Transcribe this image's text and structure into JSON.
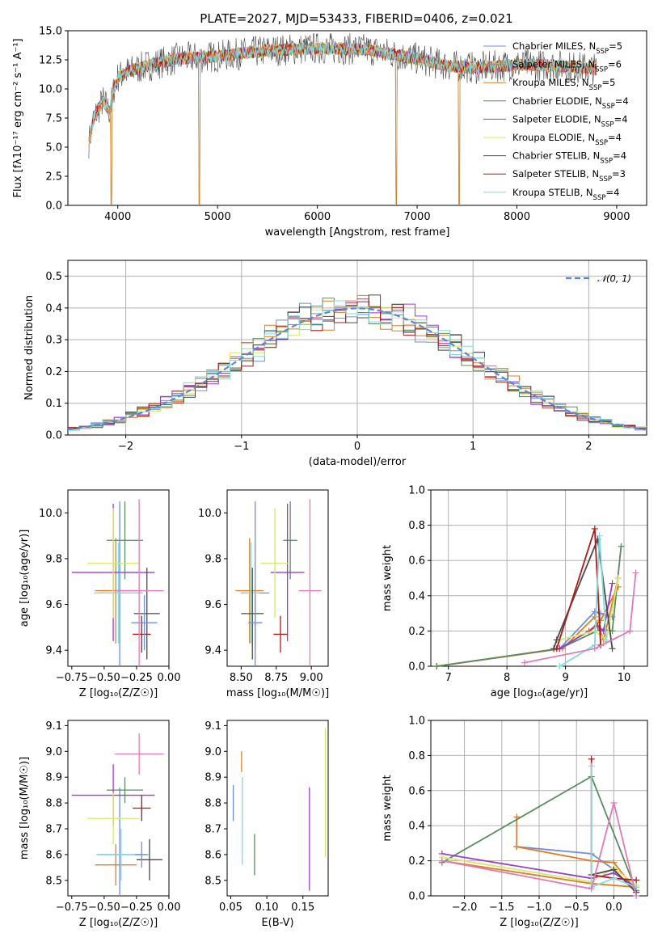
{
  "figure_title": "PLATE=2027, MJD=53433, FIBERID=0406, z=0.021",
  "series_colors": [
    "#6f8fdc",
    "#e07b1e",
    "#d9802a",
    "#5b8c62",
    "#9b3fc6",
    "#d8e86e",
    "#4a4a4a",
    "#b01818",
    "#82dada"
  ],
  "chart_data": [
    {
      "panel": "spectrum",
      "type": "line",
      "title": "PLATE=2027, MJD=53433, FIBERID=0406, z=0.021",
      "xlabel": "wavelength [Angstrom, rest frame]",
      "ylabel": "Flux [fλ10⁻¹⁷ erg cm⁻² s⁻¹ A⁻¹]",
      "xlim": [
        3500,
        9300
      ],
      "ylim": [
        0,
        15
      ],
      "xticks": [
        "4000",
        "5000",
        "6000",
        "7000",
        "8000",
        "9000"
      ],
      "yticks": [
        "0.0",
        "2.5",
        "5.0",
        "7.5",
        "10.0",
        "12.5",
        "15.0"
      ],
      "grid": false,
      "legend_position": "top-right",
      "continuum": {
        "x": [
          3700,
          3760,
          3850,
          3920,
          3960,
          4000,
          4100,
          4300,
          4600,
          5000,
          5500,
          6000,
          6500,
          7000,
          7300,
          7600,
          8000,
          8400,
          8800
        ],
        "y": [
          5.0,
          7.5,
          9.0,
          8.0,
          10.0,
          11.0,
          11.5,
          12.0,
          12.6,
          12.8,
          13.3,
          13.5,
          13.4,
          12.6,
          12.0,
          11.8,
          12.1,
          12.0,
          11.7
        ]
      },
      "dips": [
        {
          "x": 3935,
          "y": 0.0
        },
        {
          "x": 4815,
          "y": 0.0
        },
        {
          "x": 6790,
          "y": 0.0
        },
        {
          "x": 7420,
          "y": 0.0
        }
      ],
      "legend": [
        {
          "label": "Chabrier MILES, N",
          "sub": "SSP",
          "value": "=5"
        },
        {
          "label": "Salpeter MILES, N",
          "sub": "SSP",
          "value": "=6"
        },
        {
          "label": "Kroupa MILES, N",
          "sub": "SSP",
          "value": "=5"
        },
        {
          "label": "Chabrier ELODIE, N",
          "sub": "SSP",
          "value": "=4"
        },
        {
          "label": "Salpeter ELODIE, N",
          "sub": "SSP",
          "value": "=4"
        },
        {
          "label": "Kroupa ELODIE, N",
          "sub": "SSP",
          "value": "=4"
        },
        {
          "label": "Chabrier STELIB, N",
          "sub": "SSP",
          "value": "=4"
        },
        {
          "label": "Salpeter STELIB, N",
          "sub": "SSP",
          "value": "=3"
        },
        {
          "label": "Kroupa STELIB, N",
          "sub": "SSP",
          "value": "=4"
        }
      ]
    },
    {
      "panel": "residuals",
      "type": "histogram",
      "xlabel": "(data-model)/error",
      "ylabel": "Normed distribution",
      "xlim": [
        -2.5,
        2.5
      ],
      "ylim": [
        0,
        0.55
      ],
      "xticks": [
        "−2",
        "−1",
        "0",
        "1",
        "2"
      ],
      "yticks": [
        "0.0",
        "0.1",
        "0.2",
        "0.3",
        "0.4",
        "0.5"
      ],
      "grid": true,
      "legend": [
        "𝒩(0, 1)"
      ],
      "legend_position": "top-right",
      "bin_width": 0.1
    },
    {
      "panel": "Z-age",
      "type": "errorbar",
      "xlabel": "Z [log₁₀(Z/Z☉)]",
      "ylabel": "age  [log₁₀(age/yr)]",
      "xlim": [
        -0.78,
        0.0
      ],
      "ylim": [
        9.33,
        10.1
      ],
      "xticks": [
        "−0.75",
        "−0.50",
        "−0.25",
        "0.00"
      ],
      "yticks": [
        "9.4",
        "9.6",
        "9.8",
        "10.0"
      ],
      "points": [
        {
          "x": -0.38,
          "xerr": 0.17,
          "y": 9.65,
          "yerr": 0.4
        },
        {
          "x": -0.41,
          "xerr": 0.16,
          "y": 9.66,
          "yerr": 0.23
        },
        {
          "x": -0.39,
          "xerr": 0.19,
          "y": 9.65,
          "yerr": 0.22
        },
        {
          "x": -0.34,
          "xerr": 0.14,
          "y": 9.88,
          "yerr": 0.17
        },
        {
          "x": -0.43,
          "xerr": 0.32,
          "y": 9.74,
          "yerr": 0.3
        },
        {
          "x": -0.43,
          "xerr": 0.2,
          "y": 9.78,
          "yerr": 0.24
        },
        {
          "x": -0.17,
          "xerr": 0.1,
          "y": 9.56,
          "yerr": 0.2
        },
        {
          "x": -0.21,
          "xerr": 0.07,
          "y": 9.47,
          "yerr": 0.08
        },
        {
          "x": -0.19,
          "xerr": 0.1,
          "y": 9.52,
          "yerr": 0.12
        },
        {
          "x": -0.23,
          "xerr": 0.19,
          "y": 9.66,
          "yerr": 0.4
        }
      ]
    },
    {
      "panel": "mass-age",
      "type": "errorbar",
      "xlabel": "mass [log₁₀(M/M☉)]",
      "ylabel": "",
      "xlim": [
        8.4,
        9.12
      ],
      "ylim": [
        9.33,
        10.1
      ],
      "xticks": [
        "8.50",
        "8.75",
        "9.00"
      ],
      "yticks": [
        "9.4",
        "9.6",
        "9.8",
        "10.0"
      ],
      "points": [
        {
          "x": 8.6,
          "xerr": 0.1,
          "y": 9.65,
          "yerr": 0.4
        },
        {
          "x": 8.56,
          "xerr": 0.1,
          "y": 9.66,
          "yerr": 0.23
        },
        {
          "x": 8.57,
          "xerr": 0.06,
          "y": 9.65,
          "yerr": 0.22
        },
        {
          "x": 8.85,
          "xerr": 0.05,
          "y": 9.88,
          "yerr": 0.17
        },
        {
          "x": 8.83,
          "xerr": 0.12,
          "y": 9.74,
          "yerr": 0.3
        },
        {
          "x": 8.74,
          "xerr": 0.1,
          "y": 9.78,
          "yerr": 0.24
        },
        {
          "x": 8.58,
          "xerr": 0.08,
          "y": 9.56,
          "yerr": 0.2
        },
        {
          "x": 8.78,
          "xerr": 0.05,
          "y": 9.47,
          "yerr": 0.08
        },
        {
          "x": 8.6,
          "xerr": 0.05,
          "y": 9.52,
          "yerr": 0.12
        },
        {
          "x": 8.99,
          "xerr": 0.08,
          "y": 9.66,
          "yerr": 0.4
        }
      ]
    },
    {
      "panel": "age-weight",
      "type": "line",
      "xlabel": "age  [log₁₀(age/yr)]",
      "ylabel": "mass weight",
      "xlim": [
        6.7,
        10.4
      ],
      "ylim": [
        0,
        1
      ],
      "xticks": [
        "7",
        "8",
        "9",
        "10"
      ],
      "yticks": [
        "0.0",
        "0.2",
        "0.4",
        "0.6",
        "0.8",
        "1.0"
      ],
      "grid": true,
      "series": [
        {
          "values": [
            [
              6.8,
              0.0
            ],
            [
              8.9,
              0.1
            ],
            [
              9.5,
              0.31
            ],
            [
              9.6,
              0.3
            ],
            [
              9.8,
              0.28
            ]
          ]
        },
        {
          "values": [
            [
              6.8,
              0.0
            ],
            [
              8.9,
              0.1
            ],
            [
              9.4,
              0.2
            ],
            [
              9.6,
              0.26
            ],
            [
              9.9,
              0.45
            ]
          ]
        },
        {
          "values": [
            [
              6.8,
              0.0
            ],
            [
              8.95,
              0.1
            ],
            [
              9.5,
              0.28
            ],
            [
              9.65,
              0.15
            ],
            [
              9.9,
              0.5
            ]
          ]
        },
        {
          "values": [
            [
              6.8,
              0.0
            ],
            [
              8.9,
              0.1
            ],
            [
              9.6,
              0.21
            ],
            [
              9.8,
              0.2
            ],
            [
              9.95,
              0.68
            ]
          ]
        },
        {
          "values": [
            [
              8.9,
              0.1
            ],
            [
              9.55,
              0.23
            ],
            [
              9.65,
              0.2
            ],
            [
              9.8,
              0.47
            ]
          ]
        },
        {
          "values": [
            [
              8.9,
              0.15
            ],
            [
              9.5,
              0.2
            ],
            [
              9.7,
              0.15
            ],
            [
              9.9,
              0.5
            ]
          ]
        },
        {
          "values": [
            [
              8.8,
              0.1
            ],
            [
              8.85,
              0.15
            ],
            [
              9.55,
              0.72
            ],
            [
              9.8,
              0.1
            ]
          ]
        },
        {
          "values": [
            [
              8.85,
              0.1
            ],
            [
              9.5,
              0.78
            ],
            [
              9.6,
              0.12
            ]
          ]
        },
        {
          "values": [
            [
              8.9,
              0.0
            ],
            [
              9.5,
              0.12
            ],
            [
              9.58,
              0.74
            ],
            [
              9.7,
              0.14
            ]
          ]
        },
        {
          "values": [
            [
              8.3,
              0.02
            ],
            [
              9.5,
              0.1
            ],
            [
              10.1,
              0.2
            ],
            [
              10.2,
              0.53
            ]
          ]
        }
      ]
    },
    {
      "panel": "Z-mass",
      "type": "errorbar",
      "xlabel": "Z [log₁₀(Z/Z☉)]",
      "ylabel": "mass [log₁₀(M/M☉)]",
      "xlim": [
        -0.78,
        0.0
      ],
      "ylim": [
        8.44,
        9.12
      ],
      "xticks": [
        "−0.75",
        "−0.50",
        "−0.25",
        "0.00"
      ],
      "yticks": [
        "8.5",
        "8.6",
        "8.7",
        "8.8",
        "8.9",
        "9.0",
        "9.1"
      ],
      "points": [
        {
          "x": -0.38,
          "xerr": 0.17,
          "y": 8.6,
          "yerr": 0.26
        },
        {
          "x": -0.41,
          "xerr": 0.16,
          "y": 8.56,
          "yerr": 0.08
        },
        {
          "x": -0.37,
          "xerr": 0.19,
          "y": 8.6,
          "yerr": 0.1
        },
        {
          "x": -0.34,
          "xerr": 0.14,
          "y": 8.85,
          "yerr": 0.05
        },
        {
          "x": -0.43,
          "xerr": 0.32,
          "y": 8.83,
          "yerr": 0.12
        },
        {
          "x": -0.43,
          "xerr": 0.2,
          "y": 8.74,
          "yerr": 0.1
        },
        {
          "x": -0.15,
          "xerr": 0.1,
          "y": 8.58,
          "yerr": 0.08
        },
        {
          "x": -0.21,
          "xerr": 0.07,
          "y": 8.78,
          "yerr": 0.05
        },
        {
          "x": -0.21,
          "xerr": 0.05,
          "y": 8.6,
          "yerr": 0.05
        },
        {
          "x": -0.23,
          "xerr": 0.19,
          "y": 8.99,
          "yerr": 0.08
        }
      ]
    },
    {
      "panel": "ebv-mass",
      "type": "errorbar",
      "xlabel": "E(B-V)",
      "ylabel": "",
      "xlim": [
        0.045,
        0.185
      ],
      "ylim": [
        8.44,
        9.12
      ],
      "xticks": [
        "0.05",
        "0.10",
        "0.15"
      ],
      "yticks": [
        "8.5",
        "8.6",
        "8.7",
        "8.8",
        "8.9",
        "9.0",
        "9.1"
      ],
      "points": [
        {
          "x": 0.0535,
          "y": 8.8,
          "yerr": 0.07
        },
        {
          "x": 0.065,
          "y": 8.96,
          "yerr": 0.04
        },
        {
          "x": 0.066,
          "y": 8.73,
          "yerr": 0.17
        },
        {
          "x": 0.083,
          "y": 8.6,
          "yerr": 0.08
        },
        {
          "x": 0.159,
          "y": 8.66,
          "yerr": 0.2
        },
        {
          "x": 0.181,
          "y": 8.84,
          "yerr": 0.25
        }
      ]
    },
    {
      "panel": "Z-weight",
      "type": "line",
      "xlabel": "Z [log₁₀(Z/Z☉)]",
      "ylabel": "mass weight",
      "xlim": [
        -2.45,
        0.45
      ],
      "ylim": [
        0,
        1
      ],
      "xticks": [
        "−2.0",
        "−1.5",
        "−1.0",
        "−0.5",
        "0.0"
      ],
      "yticks": [
        "0.0",
        "0.2",
        "0.4",
        "0.6",
        "0.8",
        "1.0"
      ],
      "grid": true,
      "series": [
        {
          "values": [
            [
              -1.3,
              0.28
            ],
            [
              -0.3,
              0.24
            ],
            [
              0.0,
              0.15
            ],
            [
              0.3,
              0.02
            ]
          ]
        },
        {
          "values": [
            [
              -1.3,
              0.45
            ],
            [
              -1.3,
              0.28
            ],
            [
              -0.3,
              0.2
            ],
            [
              0.0,
              0.19
            ],
            [
              0.3,
              0.03
            ]
          ]
        },
        {
          "values": [
            [
              -2.3,
              0.2
            ],
            [
              -0.3,
              0.07
            ],
            [
              0.3,
              0.05
            ]
          ]
        },
        {
          "values": [
            [
              -2.3,
              0.19
            ],
            [
              -0.3,
              0.68
            ],
            [
              0.3,
              0.03
            ]
          ]
        },
        {
          "values": [
            [
              -2.3,
              0.24
            ],
            [
              -0.3,
              0.1
            ],
            [
              0.0,
              0.13
            ],
            [
              0.3,
              0.05
            ]
          ]
        },
        {
          "values": [
            [
              -2.3,
              0.22
            ],
            [
              -0.3,
              0.08
            ],
            [
              0.0,
              0.16
            ],
            [
              0.3,
              0.06
            ]
          ]
        },
        {
          "values": [
            [
              -0.3,
              0.12
            ],
            [
              0.0,
              0.15
            ],
            [
              0.3,
              0.02
            ]
          ]
        },
        {
          "values": [
            [
              -0.3,
              0.78
            ],
            [
              -0.3,
              0.12
            ],
            [
              0.0,
              0.1
            ],
            [
              0.3,
              0.09
            ]
          ]
        },
        {
          "values": [
            [
              -0.3,
              0.74
            ],
            [
              -0.3,
              0.05
            ],
            [
              0.0,
              0.1
            ],
            [
              0.3,
              0.05
            ]
          ]
        },
        {
          "values": [
            [
              -2.3,
              0.2
            ],
            [
              -0.3,
              0.04
            ],
            [
              0.0,
              0.53
            ],
            [
              0.3,
              0.0
            ]
          ]
        }
      ]
    }
  ]
}
